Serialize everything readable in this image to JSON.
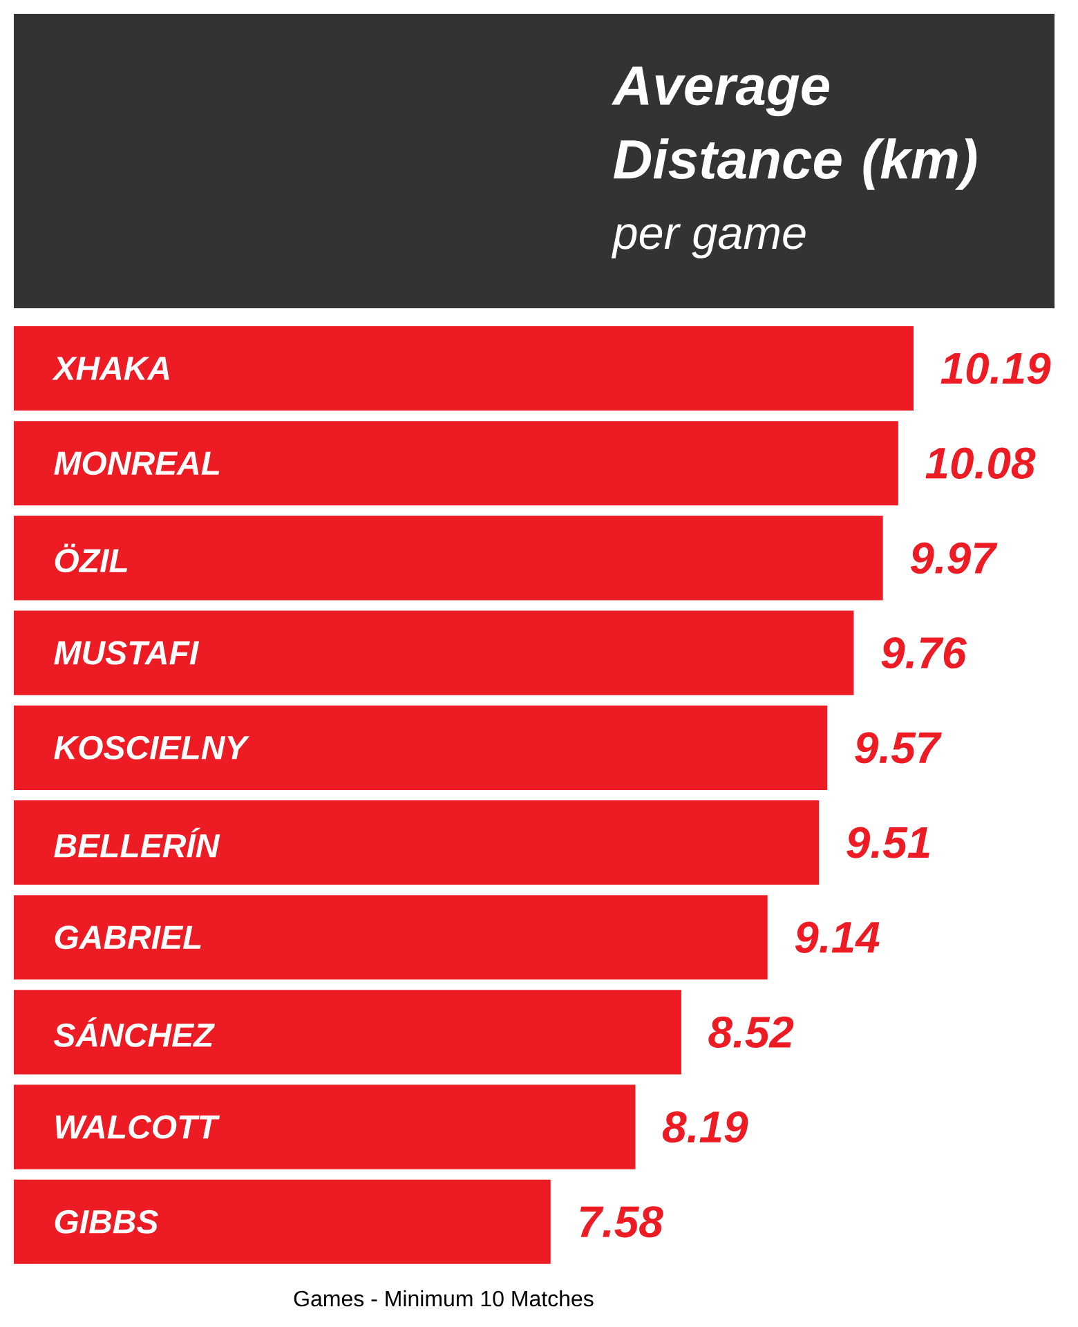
{
  "chart_data": {
    "type": "bar",
    "orientation": "horizontal",
    "title": "Average Distance (km)",
    "subtitle": "per game",
    "categories": [
      "XHAKA",
      "MONREAL",
      "ÖZIL",
      "MUSTAFI",
      "KOSCIELNY",
      "BELLERÍN",
      "GABRIEL",
      "SÁNCHEZ",
      "WALCOTT",
      "GIBBS"
    ],
    "values": [
      10.19,
      10.08,
      9.97,
      9.76,
      9.57,
      9.51,
      9.14,
      8.52,
      8.19,
      7.58
    ],
    "color": "#ed1c24",
    "xlim": [
      3.72,
      10.19
    ],
    "tick_labels": "y",
    "data_labels": true,
    "annotations": [
      "Games - Minimum 10 Matches"
    ]
  }
}
